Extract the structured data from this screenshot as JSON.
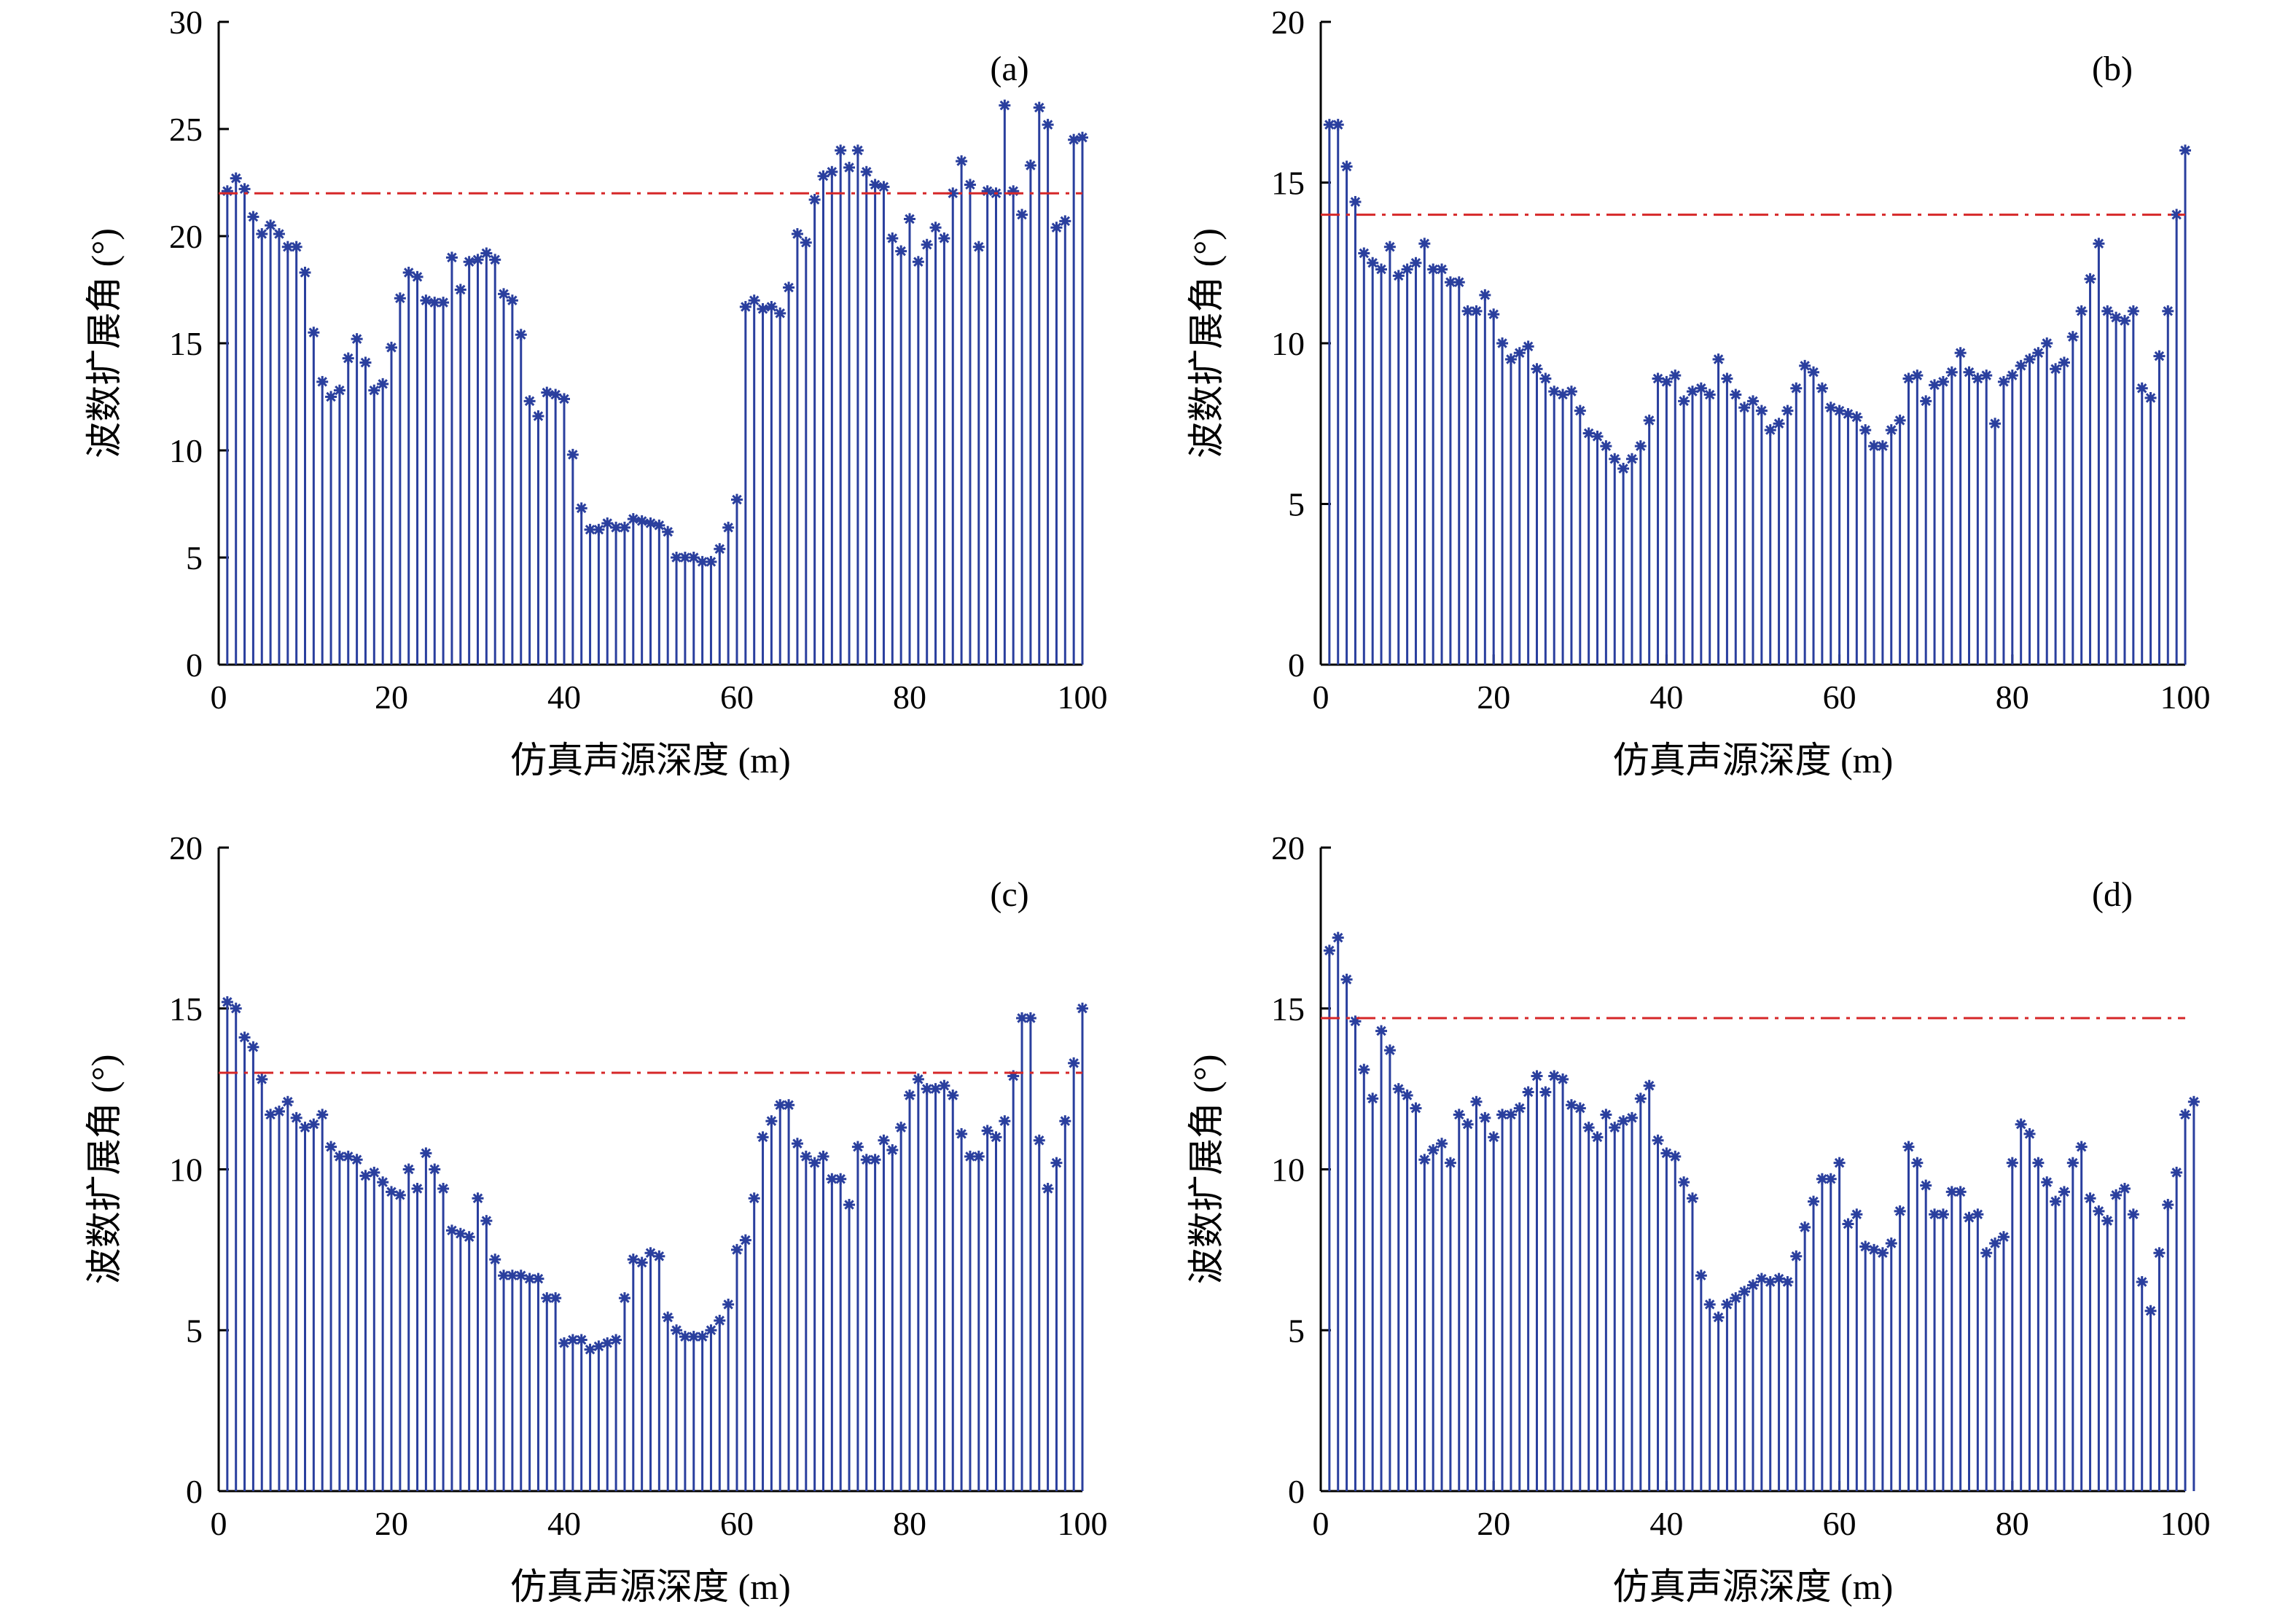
{
  "chart_data": [
    {
      "type": "stem",
      "panel_label": "(a)",
      "xlabel": "仿真声源深度 (m)",
      "ylabel": "波数扩展角 (°)",
      "xlim": [
        0,
        100
      ],
      "ylim": [
        0,
        30
      ],
      "xticks": [
        "0",
        "20",
        "40",
        "60",
        "80",
        "100"
      ],
      "yticks": [
        "0",
        "5",
        "10",
        "15",
        "20",
        "25",
        "30"
      ],
      "threshold": 22.0,
      "series_color": "#2a3f9e",
      "threshold_color": "#d62728",
      "x_start": 1,
      "x_step": 1,
      "values": [
        22.1,
        22.7,
        22.2,
        20.9,
        20.1,
        20.5,
        20.1,
        19.5,
        19.5,
        18.3,
        15.5,
        13.2,
        12.5,
        12.8,
        14.3,
        15.2,
        14.1,
        12.8,
        13.1,
        14.8,
        17.1,
        18.3,
        18.1,
        17.0,
        16.9,
        16.9,
        19.0,
        17.5,
        18.8,
        18.9,
        19.2,
        18.9,
        17.3,
        17.0,
        15.4,
        12.3,
        11.6,
        12.7,
        12.6,
        12.4,
        9.8,
        7.3,
        6.3,
        6.3,
        6.6,
        6.4,
        6.4,
        6.8,
        6.7,
        6.6,
        6.5,
        6.2,
        5.0,
        5.0,
        5.0,
        4.8,
        4.8,
        5.4,
        6.4,
        7.7,
        16.7,
        17.0,
        16.6,
        16.7,
        16.4,
        17.6,
        20.1,
        19.7,
        21.7,
        22.8,
        23.0,
        24.0,
        23.2,
        24.0,
        23.0,
        22.4,
        22.3,
        19.9,
        19.3,
        20.8,
        18.8,
        19.6,
        20.4,
        19.9,
        22.0,
        23.5,
        22.4,
        19.5,
        22.1,
        22.0,
        26.1,
        22.1,
        21.0,
        23.3,
        26.0,
        25.2,
        20.4,
        20.7,
        24.5,
        24.6
      ]
    },
    {
      "type": "stem",
      "panel_label": "(b)",
      "xlabel": "仿真声源深度 (m)",
      "ylabel": "波数扩展角 (°)",
      "xlim": [
        0,
        100
      ],
      "ylim": [
        0,
        20
      ],
      "xticks": [
        "0",
        "20",
        "40",
        "60",
        "80",
        "100"
      ],
      "yticks": [
        "0",
        "5",
        "10",
        "15",
        "20"
      ],
      "threshold": 14.0,
      "series_color": "#2a3f9e",
      "threshold_color": "#d62728",
      "x_start": 1,
      "x_step": 1,
      "values": [
        16.8,
        16.8,
        15.5,
        14.4,
        12.8,
        12.5,
        12.3,
        13.0,
        12.1,
        12.3,
        12.5,
        13.1,
        12.3,
        12.3,
        11.9,
        11.9,
        11.0,
        11.0,
        11.5,
        10.9,
        10.0,
        9.5,
        9.7,
        9.9,
        9.2,
        8.9,
        8.5,
        8.4,
        8.5,
        7.9,
        7.2,
        7.1,
        6.8,
        6.4,
        6.1,
        6.4,
        6.8,
        7.6,
        8.9,
        8.8,
        9.0,
        8.2,
        8.5,
        8.6,
        8.4,
        9.5,
        8.9,
        8.4,
        8.0,
        8.2,
        7.9,
        7.3,
        7.5,
        7.9,
        8.6,
        9.3,
        9.1,
        8.6,
        8.0,
        7.9,
        7.8,
        7.7,
        7.3,
        6.8,
        6.8,
        7.3,
        7.6,
        8.9,
        9.0,
        8.2,
        8.7,
        8.8,
        9.1,
        9.7,
        9.1,
        8.9,
        9.0,
        7.5,
        8.8,
        9.0,
        9.3,
        9.5,
        9.7,
        10.0,
        9.2,
        9.4,
        10.2,
        11.0,
        12.0,
        13.1,
        11.0,
        10.8,
        10.7,
        11.0,
        8.6,
        8.3,
        9.6,
        11.0,
        14.0,
        16.0
      ]
    },
    {
      "type": "stem",
      "panel_label": "(c)",
      "xlabel": "仿真声源深度 (m)",
      "ylabel": "波数扩展角 (°)",
      "xlim": [
        0,
        100
      ],
      "ylim": [
        0,
        20
      ],
      "xticks": [
        "0",
        "20",
        "40",
        "60",
        "80",
        "100"
      ],
      "yticks": [
        "0",
        "5",
        "10",
        "15",
        "20"
      ],
      "threshold": 13.0,
      "series_color": "#2a3f9e",
      "threshold_color": "#d62728",
      "x_start": 1,
      "x_step": 1,
      "values": [
        15.2,
        15.0,
        14.1,
        13.8,
        12.8,
        11.7,
        11.8,
        12.1,
        11.6,
        11.3,
        11.4,
        11.7,
        10.7,
        10.4,
        10.4,
        10.3,
        9.8,
        9.9,
        9.6,
        9.3,
        9.2,
        10.0,
        9.4,
        10.5,
        10.0,
        9.4,
        8.1,
        8.0,
        7.9,
        9.1,
        8.4,
        7.2,
        6.7,
        6.7,
        6.7,
        6.6,
        6.6,
        6.0,
        6.0,
        4.6,
        4.7,
        4.7,
        4.4,
        4.5,
        4.6,
        4.7,
        6.0,
        7.2,
        7.1,
        7.4,
        7.3,
        5.4,
        5.0,
        4.8,
        4.8,
        4.8,
        5.0,
        5.3,
        5.8,
        7.5,
        7.8,
        9.1,
        11.0,
        11.5,
        12.0,
        12.0,
        10.8,
        10.4,
        10.2,
        10.4,
        9.7,
        9.7,
        8.9,
        10.7,
        10.3,
        10.3,
        10.9,
        10.6,
        11.3,
        12.3,
        12.8,
        12.5,
        12.5,
        12.6,
        12.3,
        11.1,
        10.4,
        10.4,
        11.2,
        11.0,
        11.5,
        12.9,
        14.7,
        14.7,
        10.9,
        9.4,
        10.2,
        11.5,
        13.3,
        15.0
      ]
    },
    {
      "type": "stem",
      "panel_label": "(d)",
      "xlabel": "仿真声源深度 (m)",
      "ylabel": "波数扩展角 (°)",
      "xlim": [
        0,
        100
      ],
      "ylim": [
        0,
        20
      ],
      "xticks": [
        "0",
        "20",
        "40",
        "60",
        "80",
        "100"
      ],
      "yticks": [
        "0",
        "5",
        "10",
        "15",
        "20"
      ],
      "threshold": 14.7,
      "series_color": "#2a3f9e",
      "threshold_color": "#d62728",
      "x_start": 1,
      "x_step": 1,
      "values": [
        16.8,
        17.2,
        15.9,
        14.6,
        13.1,
        12.2,
        14.3,
        13.7,
        12.5,
        12.3,
        11.9,
        10.3,
        10.6,
        10.8,
        10.2,
        11.7,
        11.4,
        12.1,
        11.6,
        11.0,
        11.7,
        11.7,
        11.9,
        12.4,
        12.9,
        12.4,
        12.9,
        12.8,
        12.0,
        11.9,
        11.3,
        11.0,
        11.7,
        11.3,
        11.5,
        11.6,
        12.2,
        12.6,
        10.9,
        10.5,
        10.4,
        9.6,
        9.1,
        6.7,
        5.8,
        5.4,
        5.8,
        6.0,
        6.2,
        6.4,
        6.6,
        6.5,
        6.6,
        6.5,
        7.3,
        8.2,
        9.0,
        9.7,
        9.7,
        10.2,
        8.3,
        8.6,
        7.6,
        7.5,
        7.4,
        7.7,
        8.7,
        10.7,
        10.2,
        9.5,
        8.6,
        8.6,
        9.3,
        9.3,
        8.5,
        8.6,
        7.4,
        7.7,
        7.9,
        10.2,
        11.4,
        11.1,
        10.2,
        9.6,
        9.0,
        9.3,
        10.2,
        10.7,
        9.1,
        8.7,
        8.4,
        9.2,
        9.4,
        8.6,
        6.5,
        5.6,
        7.4,
        8.9,
        9.9,
        11.7,
        12.1
      ]
    }
  ]
}
